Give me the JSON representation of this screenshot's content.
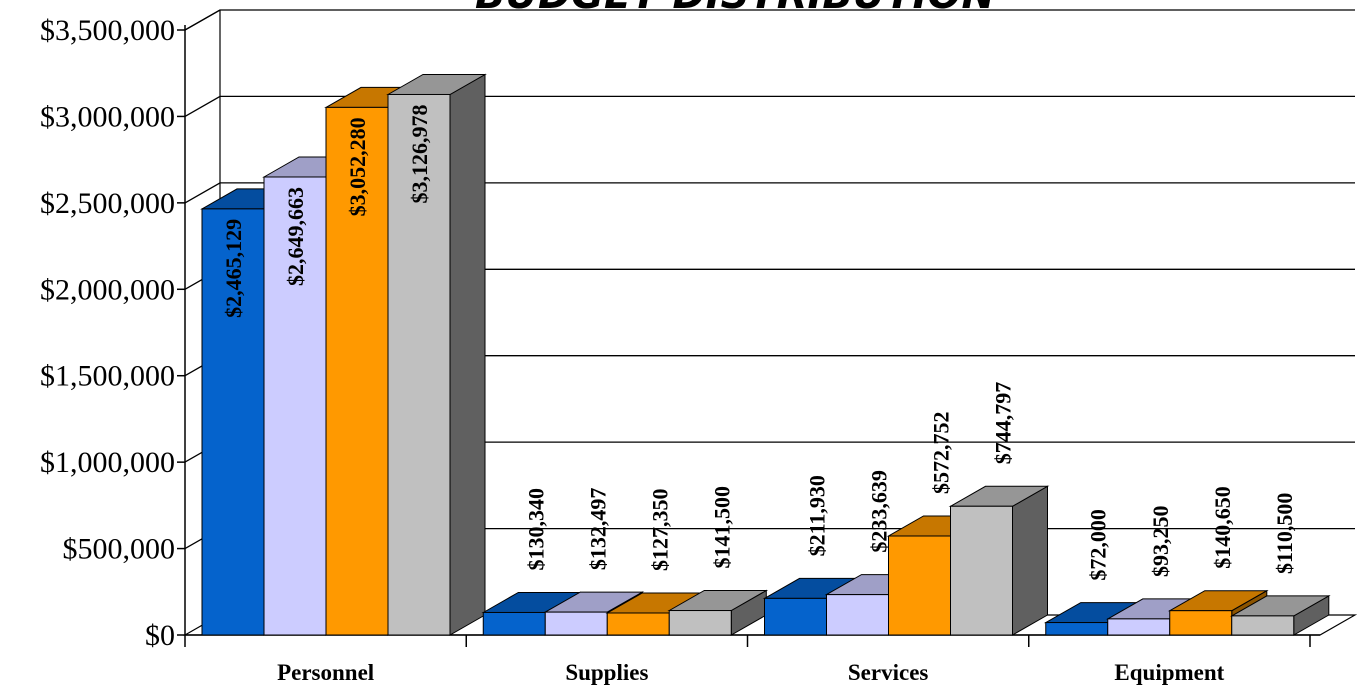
{
  "chart_data": {
    "type": "bar",
    "title": "BUDGET DISTRIBUTION",
    "categories": [
      "Personnel",
      "Supplies",
      "Services",
      "Equipment"
    ],
    "series": [
      {
        "values": [
          2465129,
          130340,
          211930,
          72000
        ],
        "color": "#0563CC"
      },
      {
        "values": [
          2649663,
          132497,
          233639,
          93250
        ],
        "color": "#CCCCFF"
      },
      {
        "values": [
          3052280,
          127350,
          572752,
          140650
        ],
        "color": "#FF9900"
      },
      {
        "values": [
          3126978,
          141500,
          744797,
          110500
        ],
        "color": "#C0C0C0"
      }
    ],
    "data_labels": [
      [
        "$2,465,129",
        "$130,340",
        "$211,930",
        "$72,000"
      ],
      [
        "$2,649,663",
        "$132,497",
        "$233,639",
        "$93,250"
      ],
      [
        "$3,052,280",
        "$127,350",
        "$572,752",
        "$140,650"
      ],
      [
        "$3,126,978",
        "$141,500",
        "$744,797",
        "$110,500"
      ]
    ],
    "y_ticks": [
      0,
      500000,
      1000000,
      1500000,
      2000000,
      2500000,
      3000000,
      3500000
    ],
    "y_tick_labels": [
      "$0",
      "$500,000",
      "$1,000,000",
      "$1,500,000",
      "$2,000,000",
      "$2,500,000",
      "$3,000,000",
      "$3,500,000"
    ],
    "ylim": [
      0,
      3500000
    ],
    "grid": true,
    "legend": "none",
    "style": "3d-clustered"
  }
}
